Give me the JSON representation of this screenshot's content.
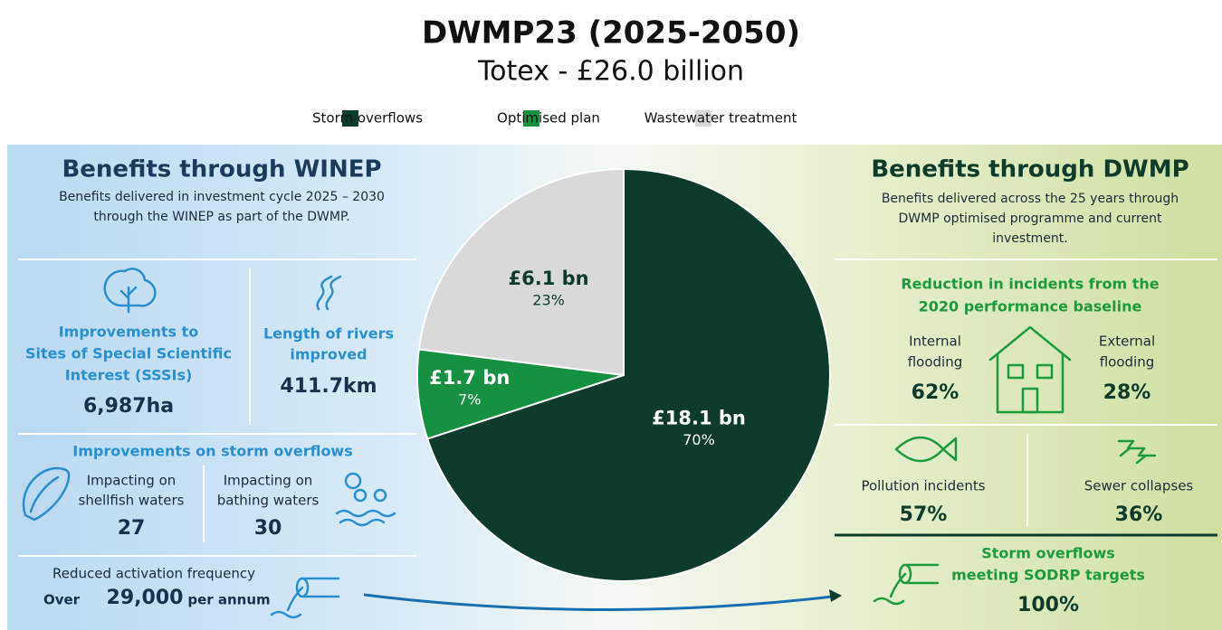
{
  "chart_data": {
    "type": "pie",
    "title": "DWMP23 (2025-2050)",
    "subtitle": "Totex - £26.0 billion",
    "categories": [
      "Storm overflows",
      "Optimised plan",
      "Wastewater treatment"
    ],
    "values": [
      70,
      7,
      23
    ],
    "value_labels": [
      "70%",
      "7%",
      "23%"
    ],
    "amount_labels": [
      "£18.1 bn",
      "£1.7 bn",
      "£6.1 bn"
    ],
    "colors": [
      "#0d3b2c",
      "#15913f",
      "#d9d9d9"
    ],
    "legend": "top"
  },
  "winep": {
    "title": "Benefits through WINEP",
    "subtitle_lines": [
      "Benefits delivered in investment cycle 2025 – 2030",
      "through the WINEP as part of the DWMP."
    ],
    "sssi": {
      "label_lines": [
        "Improvements to",
        "Sites of Special Scientific",
        "Interest (SSSIs)"
      ],
      "value": "6,987ha"
    },
    "rivers": {
      "label_lines": [
        "Length of rivers",
        "improved"
      ],
      "value": "411.7km"
    },
    "storm_title": "Improvements on storm overflows",
    "shellfish": {
      "label_lines": [
        "Impacting on",
        "shellfish waters"
      ],
      "value": "27"
    },
    "bathing": {
      "label_lines": [
        "Impacting on",
        "bathing waters"
      ],
      "value": "30"
    },
    "activation": {
      "label": "Reduced activation frequency",
      "prefix": "Over",
      "value": "29,000",
      "suffix": "per annum"
    }
  },
  "dwmp": {
    "title": "Benefits through DWMP",
    "subtitle_lines": [
      "Benefits delivered across the 25 years through",
      "DWMP optimised programme and current",
      "investment."
    ],
    "reduction_title_lines": [
      "Reduction in incidents from the",
      "2020 performance baseline"
    ],
    "internal": {
      "label_lines": [
        "Internal",
        "flooding"
      ],
      "value": "62%"
    },
    "external": {
      "label_lines": [
        "External",
        "flooding"
      ],
      "value": "28%"
    },
    "pollution": {
      "label": "Pollution incidents",
      "value": "57%"
    },
    "sewer": {
      "label": "Sewer collapses",
      "value": "36%"
    },
    "sodrp": {
      "label_lines": [
        "Storm overflows",
        "meeting SODRP targets"
      ],
      "value": "100%"
    }
  }
}
